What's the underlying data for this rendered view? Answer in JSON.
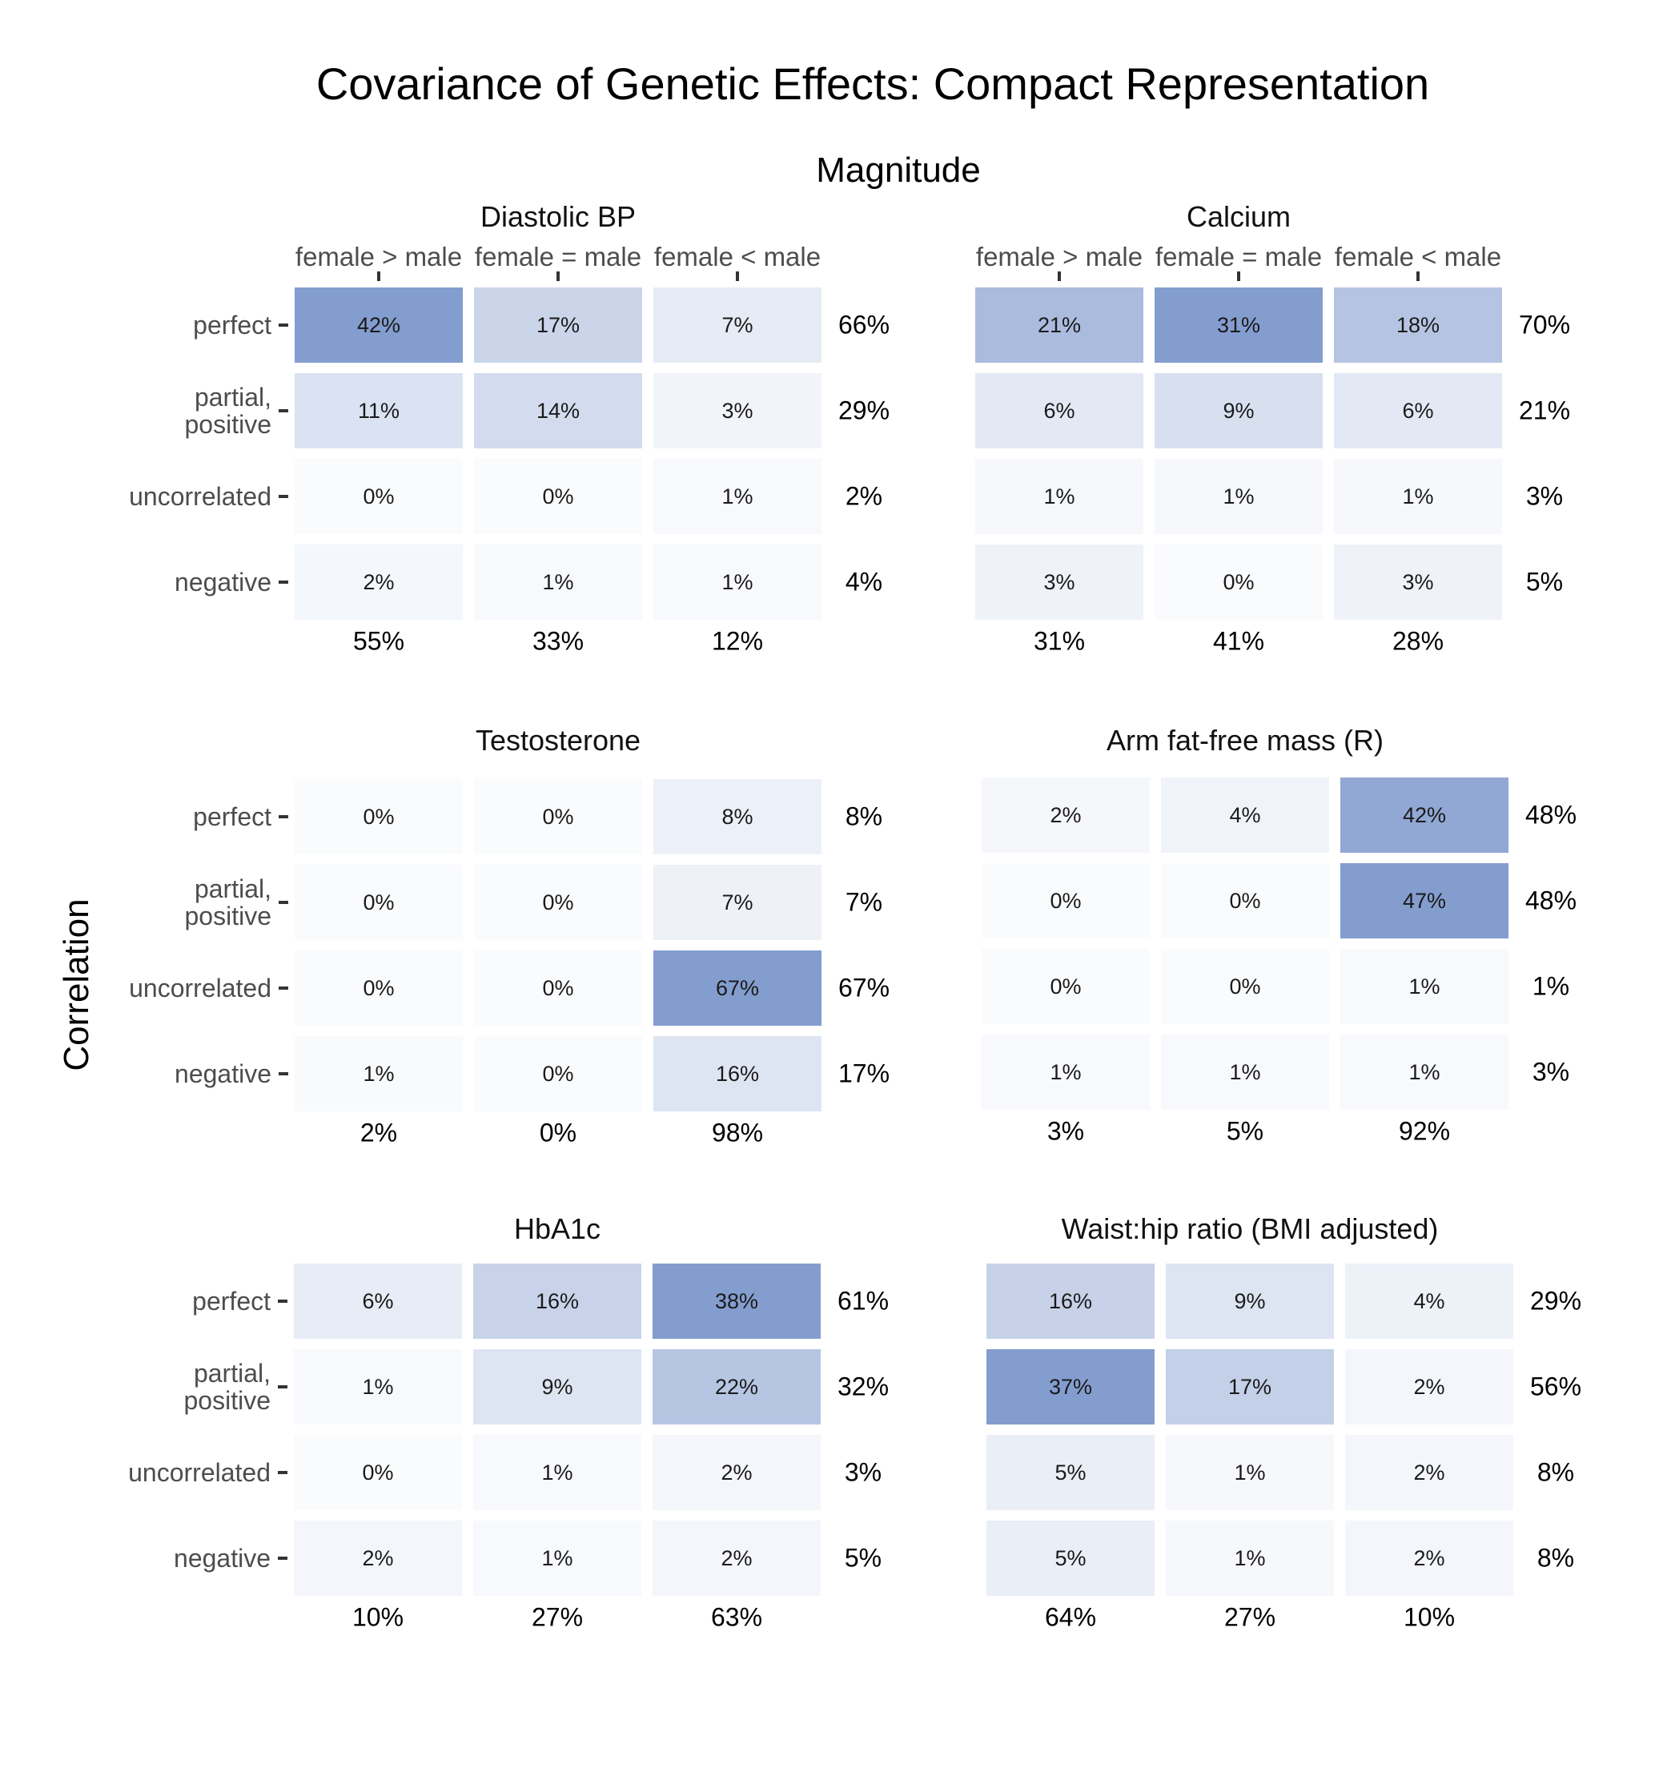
{
  "title": "Covariance of Genetic Effects: Compact Representation",
  "x_title": "Magnitude",
  "y_title": "Correlation",
  "colors": {
    "low": "#fafbfd",
    "high": "#849dcf"
  },
  "chart_data": [
    {
      "type": "heatmap",
      "title": "Diastolic BP",
      "x_categories": [
        "female > male",
        "female = male",
        "female < male"
      ],
      "y_categories": [
        "perfect",
        "partial,\npositive",
        "uncorrelated",
        "negative"
      ],
      "values": [
        [
          42,
          17,
          7
        ],
        [
          11,
          14,
          3
        ],
        [
          0,
          0,
          1
        ],
        [
          2,
          1,
          1
        ]
      ],
      "cell_labels": [
        [
          "42%",
          "17%",
          "7%"
        ],
        [
          "11%",
          "14%",
          "3%"
        ],
        [
          "0%",
          "0%",
          "1%"
        ],
        [
          "2%",
          "1%",
          "1%"
        ]
      ],
      "row_totals": [
        "66%",
        "29%",
        "2%",
        "4%"
      ],
      "col_totals": [
        "55%",
        "33%",
        "12%"
      ]
    },
    {
      "type": "heatmap",
      "title": "Calcium",
      "x_categories": [
        "female > male",
        "female = male",
        "female < male"
      ],
      "y_categories": [],
      "values": [
        [
          21,
          31,
          18
        ],
        [
          6,
          9,
          6
        ],
        [
          1,
          1,
          1
        ],
        [
          3,
          0,
          3
        ]
      ],
      "cell_labels": [
        [
          "21%",
          "31%",
          "18%"
        ],
        [
          "6%",
          "9%",
          "6%"
        ],
        [
          "1%",
          "1%",
          "1%"
        ],
        [
          "3%",
          "0%",
          "3%"
        ]
      ],
      "row_totals": [
        "70%",
        "21%",
        "3%",
        "5%"
      ],
      "col_totals": [
        "31%",
        "41%",
        "28%"
      ]
    },
    {
      "type": "heatmap",
      "title": "Testosterone",
      "x_categories": [],
      "y_categories": [
        "perfect",
        "partial,\npositive",
        "uncorrelated",
        "negative"
      ],
      "values": [
        [
          0,
          0,
          8
        ],
        [
          0,
          0,
          7
        ],
        [
          0,
          0,
          67
        ],
        [
          1,
          0,
          16
        ]
      ],
      "cell_labels": [
        [
          "0%",
          "0%",
          "8%"
        ],
        [
          "0%",
          "0%",
          "7%"
        ],
        [
          "0%",
          "0%",
          "67%"
        ],
        [
          "1%",
          "0%",
          "16%"
        ]
      ],
      "row_totals": [
        "8%",
        "7%",
        "67%",
        "17%"
      ],
      "col_totals": [
        "2%",
        "0%",
        "98%"
      ]
    },
    {
      "type": "heatmap",
      "title": "Arm fat-free mass (R)",
      "x_categories": [],
      "y_categories": [],
      "values": [
        [
          2,
          4,
          42
        ],
        [
          0,
          0,
          47
        ],
        [
          0,
          0,
          1
        ],
        [
          1,
          1,
          1
        ]
      ],
      "cell_labels": [
        [
          "2%",
          "4%",
          "42%"
        ],
        [
          "0%",
          "0%",
          "47%"
        ],
        [
          "0%",
          "0%",
          "1%"
        ],
        [
          "1%",
          "1%",
          "1%"
        ]
      ],
      "row_totals": [
        "48%",
        "48%",
        "1%",
        "3%"
      ],
      "col_totals": [
        "3%",
        "5%",
        "92%"
      ]
    },
    {
      "type": "heatmap",
      "title": "HbA1c",
      "x_categories": [],
      "y_categories": [
        "perfect",
        "partial,\npositive",
        "uncorrelated",
        "negative"
      ],
      "values": [
        [
          6,
          16,
          38
        ],
        [
          1,
          9,
          22
        ],
        [
          0,
          1,
          2
        ],
        [
          2,
          1,
          2
        ]
      ],
      "cell_labels": [
        [
          "6%",
          "16%",
          "38%"
        ],
        [
          "1%",
          "9%",
          "22%"
        ],
        [
          "0%",
          "1%",
          "2%"
        ],
        [
          "2%",
          "1%",
          "2%"
        ]
      ],
      "row_totals": [
        "61%",
        "32%",
        "3%",
        "5%"
      ],
      "col_totals": [
        "10%",
        "27%",
        "63%"
      ]
    },
    {
      "type": "heatmap",
      "title": "Waist:hip ratio (BMI adjusted)",
      "x_categories": [],
      "y_categories": [],
      "values": [
        [
          16,
          9,
          4
        ],
        [
          37,
          17,
          2
        ],
        [
          5,
          1,
          2
        ],
        [
          5,
          1,
          2
        ]
      ],
      "cell_labels": [
        [
          "16%",
          "9%",
          "4%"
        ],
        [
          "37%",
          "17%",
          "2%"
        ],
        [
          "5%",
          "1%",
          "2%"
        ],
        [
          "5%",
          "1%",
          "2%"
        ]
      ],
      "row_totals": [
        "29%",
        "56%",
        "8%",
        "8%"
      ],
      "col_totals": [
        "64%",
        "27%",
        "10%"
      ]
    }
  ]
}
